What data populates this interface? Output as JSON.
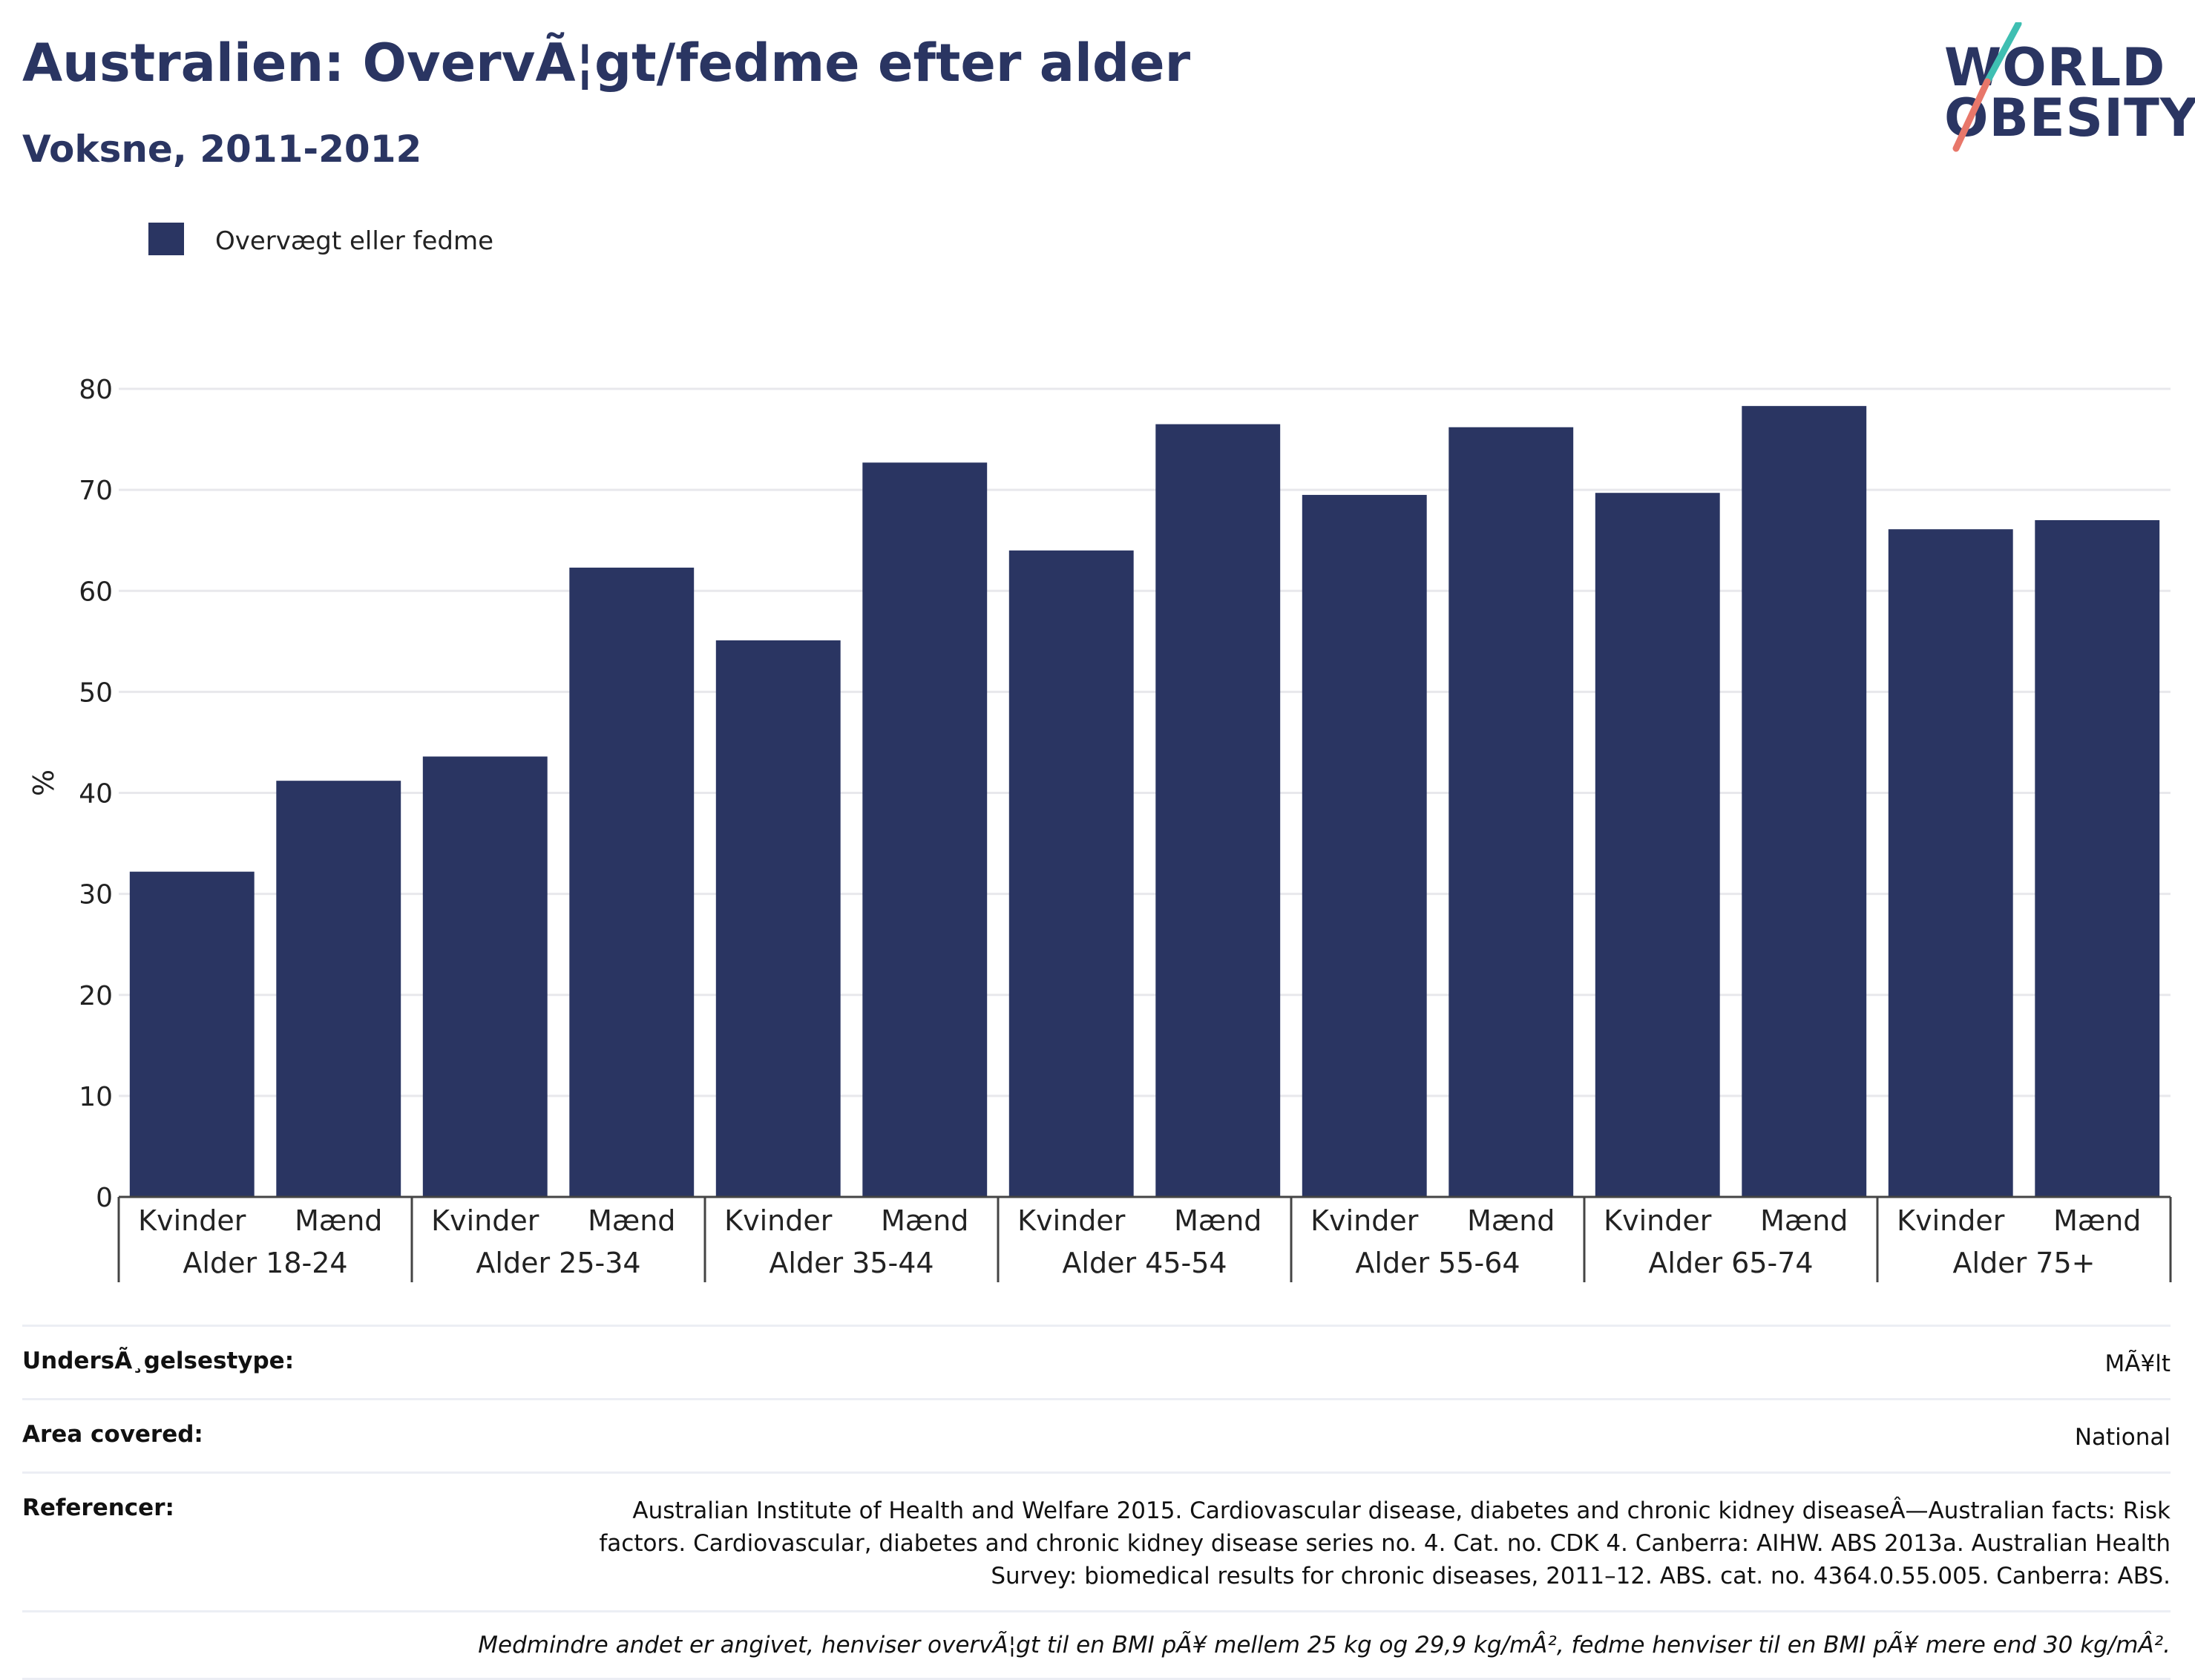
{
  "header": {
    "title": "Australien: OvervÃ¦gt/fedme efter alder",
    "subtitle": "Voksne, 2011-2012",
    "logo_line1": "WORLD",
    "logo_line2": "OBESITY"
  },
  "colors": {
    "bar": "#2a3562",
    "text": "#2a3562",
    "logo_teal": "#3fbfb2",
    "logo_coral": "#e8776a"
  },
  "chart_data": {
    "type": "bar",
    "legend": [
      "Overvægt eller fedme"
    ],
    "legend_position": "top-left",
    "ylabel": "%",
    "ylim": [
      0,
      80
    ],
    "yticks": [
      0,
      10,
      20,
      30,
      40,
      50,
      60,
      70,
      80
    ],
    "grid": true,
    "groups": [
      "Alder 18-24",
      "Alder 25-34",
      "Alder 35-44",
      "Alder 45-54",
      "Alder 55-64",
      "Alder 65-74",
      "Alder 75+"
    ],
    "sub_categories": [
      "Kvinder",
      "Mænd"
    ],
    "series": [
      {
        "name": "Overvægt eller fedme",
        "values": [
          32.2,
          41.2,
          43.6,
          62.3,
          55.1,
          72.7,
          64.0,
          76.5,
          69.5,
          76.2,
          69.7,
          78.3,
          66.1,
          67.0
        ]
      }
    ]
  },
  "info": {
    "survey_type_label": "UndersÃ¸gelsestype:",
    "survey_type_value": "MÃ¥lt",
    "area_label": "Area covered:",
    "area_value": "National",
    "references_label": "Referencer:",
    "references_value": "Australian Institute of Health and Welfare 2015. Cardiovascular disease, diabetes and chronic kidney diseaseÂ—Australian facts: Risk factors. Cardiovascular, diabetes and chronic kidney disease series no. 4. Cat. no. CDK 4. Canberra: AIHW. ABS 2013a. Australian Health Survey: biomedical results for chronic diseases, 2011–12. ABS. cat. no. 4364.0.55.005. Canberra: ABS.",
    "note": "Medmindre andet er angivet, henviser overvÃ¦gt til en BMI pÃ¥ mellem 25 kg og 29,9 kg/mÂ², fedme henviser til en BMI pÃ¥ mere end 30 kg/mÂ²."
  }
}
